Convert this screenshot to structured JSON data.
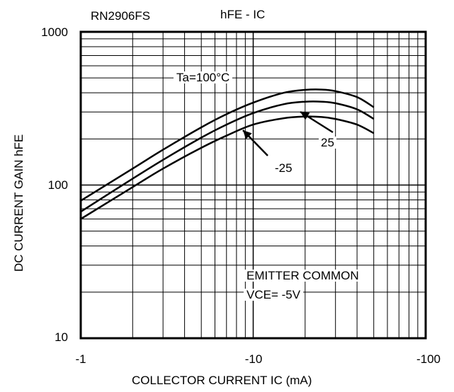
{
  "header": {
    "part_number": "RN2906FS",
    "graph_name": "hFE - IC"
  },
  "chart_data": {
    "type": "line",
    "title": "hFE - IC",
    "xlabel": "COLLECTOR CURRENT IC (mA)",
    "ylabel": "DC CURRENT GAIN hFE",
    "x_scale": "log",
    "y_scale": "log",
    "x_direction": "negative values, magnitude increasing left to right",
    "xlim": [
      -1,
      -100
    ],
    "ylim": [
      10,
      1000
    ],
    "grid": true,
    "x_ticks": [
      "-1",
      "-10",
      "-100"
    ],
    "y_ticks": [
      "10",
      "100",
      "1000"
    ],
    "series": [
      {
        "name": "Ta=100°C",
        "x": [
          -1,
          -2,
          -3,
          -5,
          -7,
          -10,
          -15,
          -20,
          -25,
          -30,
          -40,
          -50
        ],
        "y": [
          79,
          128,
          170,
          238,
          290,
          345,
          400,
          418,
          420,
          410,
          375,
          322
        ]
      },
      {
        "name": "25",
        "x": [
          -1,
          -2,
          -3,
          -5,
          -7,
          -10,
          -15,
          -20,
          -25,
          -30,
          -40,
          -50
        ],
        "y": [
          67,
          110,
          146,
          204,
          248,
          295,
          337,
          350,
          350,
          342,
          312,
          270
        ]
      },
      {
        "name": "-25",
        "x": [
          -1,
          -2,
          -3,
          -5,
          -7,
          -10,
          -15,
          -20,
          -25,
          -30,
          -40,
          -50
        ],
        "y": [
          60,
          97,
          128,
          175,
          210,
          248,
          273,
          280,
          278,
          270,
          248,
          218
        ]
      }
    ],
    "annotations": [
      "Ta=100°C",
      "25",
      "-25",
      "EMITTER COMMON",
      "VCE= -5V"
    ]
  }
}
